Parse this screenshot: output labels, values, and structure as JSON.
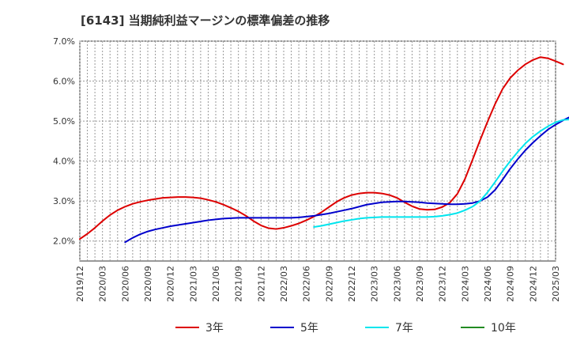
{
  "chart_data": {
    "type": "line",
    "title": "[6143]  当期純利益マージンの標準偏差の推移",
    "xlabel": "",
    "ylabel": "",
    "ylim": [
      1.5,
      7.0
    ],
    "y_ticks": [
      "2.0%",
      "3.0%",
      "4.0%",
      "5.0%",
      "6.0%",
      "7.0%"
    ],
    "y_tick_values": [
      2.0,
      3.0,
      4.0,
      5.0,
      6.0,
      7.0
    ],
    "x_ticks": [
      "2019/12",
      "2020/03",
      "2020/06",
      "2020/09",
      "2020/12",
      "2021/03",
      "2021/06",
      "2021/09",
      "2021/12",
      "2022/03",
      "2022/06",
      "2022/09",
      "2022/12",
      "2023/03",
      "2023/06",
      "2023/09",
      "2023/12",
      "2024/03",
      "2024/06",
      "2024/09",
      "2024/12",
      "2025/03"
    ],
    "grid": true,
    "legend_position": "bottom",
    "series": [
      {
        "name": "3年",
        "color": "#dd0000",
        "values": [
          2.05,
          2.18,
          2.33,
          2.5,
          2.65,
          2.77,
          2.86,
          2.93,
          2.98,
          3.02,
          3.05,
          3.08,
          3.09,
          3.1,
          3.1,
          3.09,
          3.07,
          3.03,
          2.98,
          2.91,
          2.83,
          2.74,
          2.63,
          2.5,
          2.39,
          2.32,
          2.3,
          2.33,
          2.38,
          2.44,
          2.52,
          2.61,
          2.72,
          2.85,
          2.98,
          3.08,
          3.15,
          3.19,
          3.21,
          3.21,
          3.19,
          3.15,
          3.08,
          2.97,
          2.87,
          2.8,
          2.78,
          2.79,
          2.85,
          2.96,
          3.18,
          3.55,
          4.03,
          4.52,
          4.99,
          5.43,
          5.81,
          6.08,
          6.27,
          6.42,
          6.53,
          6.6,
          6.57,
          6.5,
          6.42
        ]
      },
      {
        "name": "5年",
        "color": "#0000cc",
        "values": [
          null,
          null,
          null,
          null,
          null,
          null,
          1.97,
          2.08,
          2.17,
          2.24,
          2.29,
          2.33,
          2.37,
          2.4,
          2.43,
          2.46,
          2.49,
          2.52,
          2.54,
          2.56,
          2.57,
          2.58,
          2.58,
          2.58,
          2.58,
          2.58,
          2.58,
          2.58,
          2.58,
          2.59,
          2.61,
          2.63,
          2.66,
          2.69,
          2.73,
          2.77,
          2.81,
          2.86,
          2.91,
          2.94,
          2.97,
          2.98,
          2.99,
          2.99,
          2.98,
          2.97,
          2.95,
          2.94,
          2.93,
          2.92,
          2.92,
          2.93,
          2.95,
          3.0,
          3.1,
          3.28,
          3.54,
          3.81,
          4.05,
          4.27,
          4.46,
          4.63,
          4.79,
          4.91,
          5.02,
          5.11,
          5.21,
          5.26,
          5.27,
          5.28
        ]
      },
      {
        "name": "7年",
        "color": "#00e5ee",
        "values": [
          null,
          null,
          null,
          null,
          null,
          null,
          null,
          null,
          null,
          null,
          null,
          null,
          null,
          null,
          null,
          null,
          null,
          null,
          null,
          null,
          null,
          null,
          null,
          null,
          null,
          null,
          null,
          null,
          null,
          null,
          null,
          2.35,
          2.38,
          2.42,
          2.46,
          2.5,
          2.53,
          2.56,
          2.58,
          2.59,
          2.6,
          2.6,
          2.6,
          2.6,
          2.6,
          2.6,
          2.6,
          2.61,
          2.63,
          2.66,
          2.7,
          2.77,
          2.86,
          3.0,
          3.22,
          3.48,
          3.75,
          4.0,
          4.23,
          4.44,
          4.61,
          4.75,
          4.87,
          4.97,
          5.03,
          5.04,
          5.03,
          5.01
        ]
      },
      {
        "name": "10年",
        "color": "#228b22",
        "values": []
      }
    ]
  },
  "colors": {
    "grid": "#999999",
    "axis": "#333333",
    "background": "#ffffff"
  }
}
